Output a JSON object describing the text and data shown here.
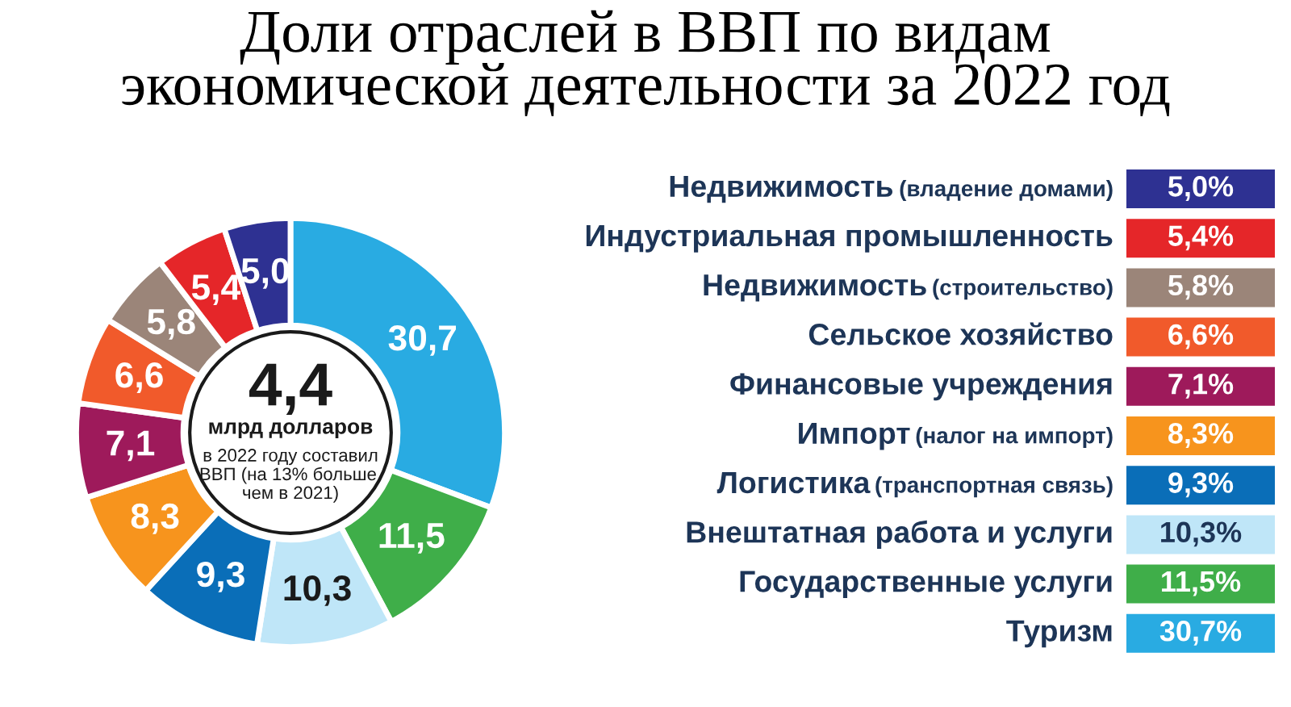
{
  "chart_data": {
    "type": "donut",
    "title": "Доли отраслей в ВВП по видам\nэкономической деятельности за 2022 год",
    "categories": [
      "Недвижимость (владение домами)",
      "Индустриальная промышленность",
      "Недвижимость (строительство)",
      "Сельское хозяйство",
      "Финансовые учреждения",
      "Импорт (налог на импорт)",
      "Логистика (транспортная связь)",
      "Внештатная работа и услуги",
      "Государственные услуги",
      "Туризм"
    ],
    "values": [
      5.0,
      5.4,
      5.8,
      6.6,
      7.1,
      8.3,
      9.3,
      10.3,
      11.5,
      30.7
    ],
    "colors": [
      "#2e3192",
      "#e52629",
      "#9b8579",
      "#f15a2b",
      "#9e1a5b",
      "#f7941d",
      "#0a6eb8",
      "#bfe6f8",
      "#3fae49",
      "#29abe2"
    ],
    "value_labels": [
      "5,0",
      "5,4",
      "5,8",
      "6,6",
      "7,1",
      "8,3",
      "9,3",
      "10,3",
      "11,5",
      "30,7"
    ],
    "legend": "right",
    "annotations": [
      "4,4",
      "млрд долларов",
      "в 2022 году составил\nВВП (на 13% больше,\nчем в 2021)",
      "5,0%",
      "5,4%",
      "5,8%",
      "6,6%",
      "7,1%",
      "8,3%",
      "9,3%",
      "10,3%",
      "11,5%",
      "30,7%"
    ]
  }
}
